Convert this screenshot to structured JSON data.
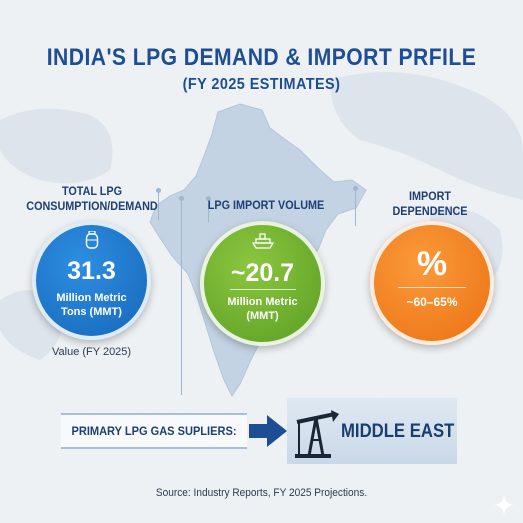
{
  "header": {
    "title": "INDIA'S LPG DEMAND & IMPORT PRFILE",
    "subtitle": "(FY 2025 ESTIMATES)"
  },
  "metrics": [
    {
      "label_line1": "TOTAL LPG",
      "label_line2": "CONSUMPTION/DEMAND",
      "value": "31.3",
      "unit_line1": "Million Metric",
      "unit_line2": "Tons (MMT)",
      "note": "Value (FY 2025)",
      "color": "#1e78cf",
      "icon": "gas-cylinder-icon"
    },
    {
      "label": "LPG IMPORT VOLUME",
      "value": "~20.7",
      "unit_line1": "Million Metric",
      "unit_line2": "(MMT)",
      "color": "#72b52f",
      "icon": "tanker-ship-icon"
    },
    {
      "label_line1": "IMPORT",
      "label_line2": "DEPENDENCE",
      "value": "%",
      "range": "~60–65%",
      "color": "#f5861f"
    }
  ],
  "suppliers": {
    "label": "PRIMARY LPG GAS SUPLIERS:",
    "region": "MIDDLE EAST",
    "icon": "oil-pump-icon"
  },
  "footer": {
    "source": "Source: Industry Reports, FY 2025 Projections."
  }
}
